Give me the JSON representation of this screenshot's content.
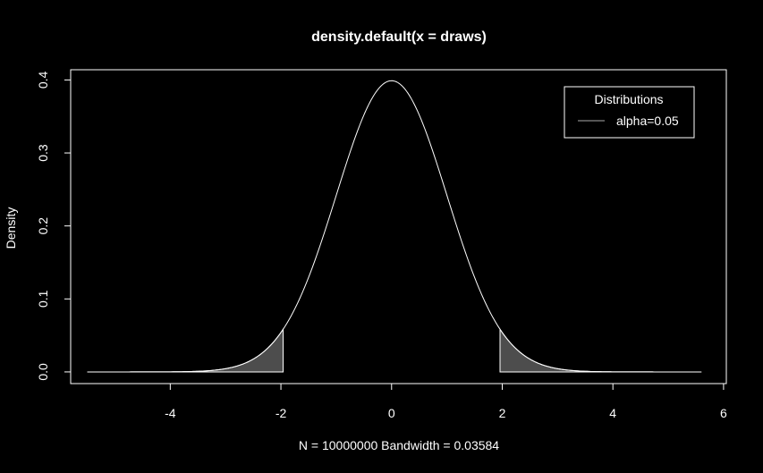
{
  "chart_data": {
    "type": "line",
    "title": "density.default(x = draws)",
    "xlabel": "N = 10000000   Bandwidth = 0.03584",
    "ylabel": "Density",
    "xlim": [
      -5.8,
      6.05
    ],
    "ylim": [
      -0.016,
      0.414
    ],
    "x_ticks": [
      -4,
      -2,
      0,
      2,
      4,
      6
    ],
    "x_tick_labels": [
      "-4",
      "-2",
      "0",
      "2",
      "4",
      "6"
    ],
    "y_ticks": [
      0.0,
      0.1,
      0.2,
      0.3,
      0.4
    ],
    "y_tick_labels": [
      "0.0",
      "0.1",
      "0.2",
      "0.3",
      "0.4"
    ],
    "series": [
      {
        "x": [
          -5.5,
          -5,
          -4.5,
          -4,
          -3.5,
          -3,
          -2.5,
          -2,
          -1.5,
          -1,
          -0.5,
          0,
          0.5,
          1,
          1.5,
          2,
          2.5,
          3,
          3.5,
          4,
          4.5,
          5,
          5.6
        ],
        "y": [
          0.0,
          0.0,
          0.0,
          0.0001,
          0.0009,
          0.0044,
          0.0175,
          0.054,
          0.1295,
          0.242,
          0.352,
          0.399,
          0.352,
          0.242,
          0.1295,
          0.054,
          0.0175,
          0.0044,
          0.0009,
          0.0001,
          0.0,
          0.0,
          0.0
        ]
      }
    ],
    "shaded_regions": [
      {
        "from": -5.5,
        "to": -1.96
      },
      {
        "from": 1.96,
        "to": 5.6
      }
    ],
    "legend": {
      "title": "Distributions",
      "position": "top-right",
      "entries": [
        {
          "label": "alpha=0.05",
          "color": "#555555"
        }
      ]
    },
    "colors": {
      "background": "#000000",
      "line": "#ffffff",
      "fill": "#4d4d4d",
      "axis": "#ffffff"
    }
  }
}
